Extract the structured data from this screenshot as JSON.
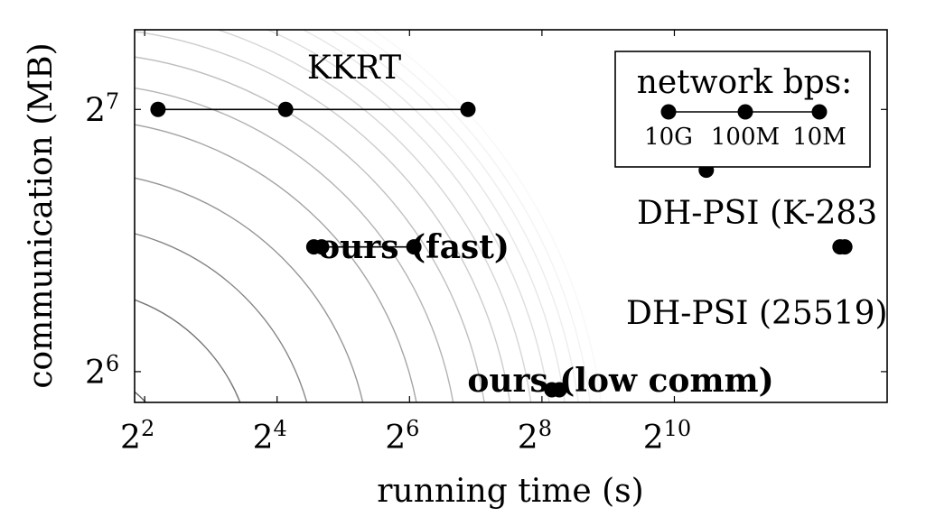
{
  "chart_data": {
    "type": "scatter",
    "xlabel": "running time (s)",
    "ylabel": "communication (MB)",
    "x_scale": "log2",
    "y_scale": "log2",
    "xlim": [
      3.6,
      9500
    ],
    "ylim": [
      59,
      158
    ],
    "x_ticks": [
      {
        "value": 4,
        "base": "2",
        "exp": "2"
      },
      {
        "value": 16,
        "base": "2",
        "exp": "4"
      },
      {
        "value": 64,
        "base": "2",
        "exp": "6"
      },
      {
        "value": 256,
        "base": "2",
        "exp": "8"
      },
      {
        "value": 1024,
        "base": "2",
        "exp": "10"
      }
    ],
    "y_ticks": [
      {
        "value": 64,
        "base": "2",
        "exp": "6"
      },
      {
        "value": 128,
        "base": "2",
        "exp": "7"
      }
    ],
    "legend": {
      "position": "top-right",
      "title": "network bps:",
      "entries": [
        "10G",
        "100M",
        "10M"
      ]
    },
    "series": [
      {
        "name": "KKRT",
        "x": [
          4.6,
          17.5,
          118
        ],
        "y": [
          128,
          128,
          128
        ],
        "connected": true
      },
      {
        "name": "ours (fast)",
        "x": [
          23.5,
          25.5,
          67
        ],
        "y": [
          89,
          89,
          89
        ],
        "connected": true
      },
      {
        "name": "DH-PSI (K-283",
        "x": [
          1430
        ],
        "y": [
          109
        ],
        "connected": false
      },
      {
        "name": "DH-PSI (25519)",
        "x": [
          5800,
          6100
        ],
        "y": [
          89,
          89
        ],
        "connected": false
      },
      {
        "name": "ours (low comm)",
        "x": [
          284,
          307
        ],
        "y": [
          61,
          61
        ],
        "connected": false
      }
    ],
    "contours": {
      "style": "iso-cost curves, grey",
      "count": 14
    }
  }
}
